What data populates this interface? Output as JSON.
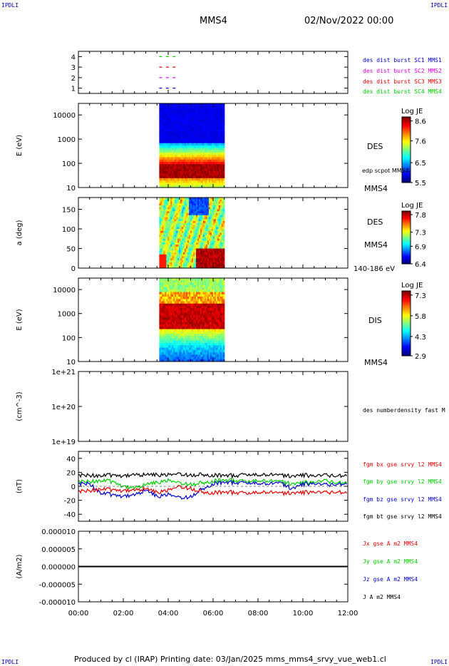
{
  "header": {
    "corner_tl": "IPDLI",
    "corner_tr": "IPDLI",
    "corner_bl": "IPDLI",
    "corner_br": "IPDLI",
    "spacecraft": "MMS4",
    "date": "02/Nov/2022 00:00"
  },
  "footer": {
    "text": "Produced by cl (IRAP)   Printing date: 03/Jan/2025   mms_mms4_srvy_vue_web1.cl"
  },
  "colors": {
    "blue": "#0000cc",
    "magenta": "#dd00dd",
    "red": "#e00000",
    "green": "#00cc00",
    "black": "#000000"
  },
  "chart_data": [
    {
      "type": "scatter",
      "panel": "burst",
      "yticks": [
        "4",
        "3",
        "2",
        "1"
      ],
      "ylim": [
        0.5,
        4.5
      ],
      "legend": [
        {
          "label": "des dist burst SC1 MMS1",
          "color": "#0000cc"
        },
        {
          "label": "des dist burst SC2 MMS2",
          "color": "#dd00dd"
        },
        {
          "label": "des dist burst SC3 MMS3",
          "color": "#e00000"
        },
        {
          "label": "des dist burst SC4 MMS4",
          "color": "#00cc00"
        }
      ],
      "series": [
        {
          "y": 4,
          "color": "#00cc00",
          "x": [
            3.6,
            3.9,
            4.2
          ]
        },
        {
          "y": 3,
          "color": "#e00000",
          "x": [
            3.6,
            3.9,
            4.2
          ]
        },
        {
          "y": 2,
          "color": "#dd00dd",
          "x": [
            3.6,
            3.9,
            4.2
          ]
        },
        {
          "y": 1,
          "color": "#0000cc",
          "x": [
            3.6,
            3.9,
            4.2
          ]
        }
      ]
    },
    {
      "type": "heatmap",
      "panel": "des_energy",
      "ylabel": "E (eV)",
      "yscale": "log",
      "yticks": [
        "10000",
        "1000",
        "100",
        "10"
      ],
      "ylim": [
        10,
        30000
      ],
      "time_range_h": [
        3.6,
        6.5
      ],
      "colorbar": {
        "title": "Log JE",
        "ticks": [
          "8.6",
          "7.6",
          "6.5",
          "5.5"
        ],
        "min": 5.5,
        "max": 8.8
      },
      "right_labels": [
        "DES",
        "edp scpot MMS4",
        "MMS4"
      ]
    },
    {
      "type": "heatmap",
      "panel": "des_pitch",
      "ylabel": "a (deg)",
      "yticks": [
        "150",
        "100",
        "50",
        "0"
      ],
      "ylim": [
        0,
        180
      ],
      "time_range_h": [
        3.6,
        6.5
      ],
      "colorbar": {
        "title": "Log JE",
        "ticks": [
          "7.8",
          "7.3",
          "6.9",
          "6.4"
        ],
        "min": 6.4,
        "max": 7.9
      },
      "right_labels": [
        "DES",
        "MMS4",
        "140-186 eV"
      ]
    },
    {
      "type": "heatmap",
      "panel": "dis_energy",
      "ylabel": "E (eV)",
      "yscale": "log",
      "yticks": [
        "10000",
        "1000",
        "100",
        "10"
      ],
      "ylim": [
        10,
        30000
      ],
      "time_range_h": [
        3.6,
        6.5
      ],
      "colorbar": {
        "title": "Log JE",
        "ticks": [
          "7.3",
          "5.8",
          "4.3",
          "2.9"
        ],
        "min": 2.9,
        "max": 7.6
      },
      "right_labels": [
        "DIS",
        "MMS4"
      ]
    },
    {
      "type": "line",
      "panel": "density",
      "ylabel": "(cm^-3)",
      "yscale": "log",
      "yticks": [
        "1e+21",
        "1e+20",
        "1e+19"
      ],
      "ylim": [
        1e+19,
        1e+21
      ],
      "legend": [
        {
          "label": "des numberdensity fast M",
          "color": "#000000"
        }
      ],
      "series": []
    },
    {
      "type": "line",
      "panel": "fgm",
      "ylabel": "(nT)",
      "yticks": [
        "40",
        "20",
        "0",
        "-20",
        "-40"
      ],
      "ylim": [
        -50,
        50
      ],
      "legend": [
        {
          "label": "fgm bx gse srvy l2 MMS4",
          "color": "#e00000"
        },
        {
          "label": "fgm by gse srvy l2 MMS4",
          "color": "#00cc00"
        },
        {
          "label": "fgm bz gse srvy l2 MMS4",
          "color": "#0000cc"
        },
        {
          "label": "fgm bt gse srvy l2 MMS4",
          "color": "#000000"
        }
      ],
      "series": [
        {
          "name": "fgm bt gse srvy l2 MMS4",
          "color": "#000000",
          "x": [
            0,
            0.5,
            1,
            1.5,
            2,
            2.5,
            3,
            3.5,
            4,
            4.5,
            5,
            5.5,
            6,
            6.5,
            7,
            7.5,
            8,
            8.5,
            9,
            9.5,
            10,
            10.5,
            11,
            11.5,
            12
          ],
          "values": [
            15,
            16,
            15,
            16,
            15,
            17,
            16,
            17,
            16,
            18,
            16,
            17,
            16,
            16,
            15,
            17,
            16,
            17,
            16,
            15,
            16,
            15,
            16,
            15,
            16
          ]
        },
        {
          "name": "fgm by gse srvy l2 MMS4",
          "color": "#00cc00",
          "x": [
            0,
            0.5,
            1,
            1.5,
            2,
            2.5,
            3,
            3.5,
            4,
            4.5,
            5,
            5.5,
            6,
            6.5,
            7,
            7.5,
            8,
            8.5,
            9,
            9.5,
            10,
            10.5,
            11,
            11.5,
            12
          ],
          "values": [
            6,
            7,
            8,
            7,
            0,
            -2,
            2,
            6,
            8,
            5,
            3,
            5,
            8,
            9,
            8,
            7,
            8,
            8,
            7,
            4,
            5,
            6,
            8,
            5,
            6
          ]
        },
        {
          "name": "fgm bz gse srvy l2 MMS4",
          "color": "#0000cc",
          "x": [
            0,
            0.5,
            1,
            1.5,
            2,
            2.5,
            3,
            3.5,
            4,
            4.5,
            5,
            5.5,
            6,
            6.5,
            7,
            7.5,
            8,
            8.5,
            9,
            9.5,
            10,
            10.5,
            11,
            11.5,
            12
          ],
          "values": [
            3,
            4,
            -10,
            -12,
            -14,
            -12,
            -6,
            -14,
            -12,
            -16,
            -15,
            -4,
            4,
            6,
            5,
            5,
            4,
            4,
            5,
            -3,
            3,
            4,
            2,
            3,
            4
          ]
        },
        {
          "name": "fgm bx gse srvy l2 MMS4",
          "color": "#e00000",
          "x": [
            0,
            0.5,
            1,
            1.5,
            2,
            2.5,
            3,
            3.5,
            4,
            4.5,
            5,
            5.5,
            6,
            6.5,
            7,
            7.5,
            8,
            8.5,
            9,
            9.5,
            10,
            10.5,
            11,
            11.5,
            12
          ],
          "values": [
            -8,
            -6,
            -4,
            -5,
            -6,
            -5,
            -4,
            -8,
            -6,
            0,
            -3,
            -8,
            -9,
            -8,
            -9,
            -10,
            -9,
            -8,
            -10,
            -9,
            -9,
            -8,
            -9,
            -8,
            -9
          ]
        }
      ]
    },
    {
      "type": "line",
      "panel": "current",
      "ylabel": "(A/m2)",
      "yticks": [
        "0.000010",
        "0.000005",
        "0.000000",
        "-0.000005",
        "-0.000010"
      ],
      "ylim": [
        -1e-05,
        1e-05
      ],
      "xticks": [
        "00:00",
        "02:00",
        "04:00",
        "06:00",
        "08:00",
        "10:00",
        "12:00"
      ],
      "xlim": [
        0,
        12
      ],
      "legend": [
        {
          "label": "Jx gse A m2 MMS4",
          "color": "#e00000"
        },
        {
          "label": "Jy gse A m2 MMS4",
          "color": "#00cc00"
        },
        {
          "label": "Jz gse A m2 MMS4",
          "color": "#0000cc"
        },
        {
          "label": "J A m2 MMS4",
          "color": "#000000"
        }
      ],
      "series": [
        {
          "name": "J A m2 MMS4",
          "color": "#000000",
          "x": [
            0,
            12
          ],
          "values": [
            0,
            0
          ]
        }
      ]
    }
  ]
}
